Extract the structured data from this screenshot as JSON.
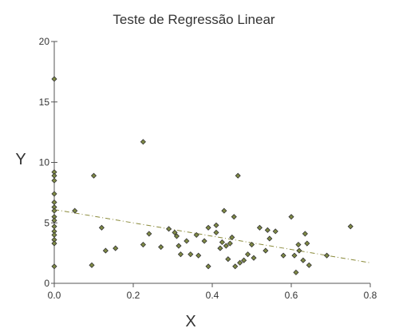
{
  "chart_data": {
    "type": "scatter",
    "title": "Teste de Regressão Linear",
    "xlabel": "X",
    "ylabel": "Y",
    "xlim": [
      0,
      0.8
    ],
    "ylim": [
      0,
      20
    ],
    "xticks": [
      0,
      0.2,
      0.4,
      0.6,
      0.8
    ],
    "yticks": [
      0,
      5,
      10,
      15,
      20
    ],
    "xtick_labels": [
      "0.0",
      "0.2",
      "0.4",
      "0.6",
      "0.8"
    ],
    "ytick_labels": [
      "0",
      "5",
      "10",
      "15",
      "20"
    ],
    "grid": false,
    "legend": "none",
    "colors": {
      "marker_fill": "#7f8a45",
      "marker_stroke": "#333333",
      "trend": "#8a8a3a"
    },
    "series": [
      {
        "points": [
          {
            "x": 0.0,
            "y": 16.9
          },
          {
            "x": 0.0,
            "y": 9.2
          },
          {
            "x": 0.0,
            "y": 8.9
          },
          {
            "x": 0.0,
            "y": 8.5
          },
          {
            "x": 0.0,
            "y": 7.4
          },
          {
            "x": 0.0,
            "y": 6.7
          },
          {
            "x": 0.0,
            "y": 6.3
          },
          {
            "x": 0.0,
            "y": 6.0
          },
          {
            "x": 0.0,
            "y": 5.5
          },
          {
            "x": 0.0,
            "y": 5.2
          },
          {
            "x": 0.0,
            "y": 4.7
          },
          {
            "x": 0.0,
            "y": 4.3
          },
          {
            "x": 0.0,
            "y": 4.0
          },
          {
            "x": 0.0,
            "y": 3.6
          },
          {
            "x": 0.0,
            "y": 3.3
          },
          {
            "x": 0.0,
            "y": 1.4
          },
          {
            "x": 0.052,
            "y": 6.0
          },
          {
            "x": 0.095,
            "y": 1.5
          },
          {
            "x": 0.1,
            "y": 8.9
          },
          {
            "x": 0.12,
            "y": 4.6
          },
          {
            "x": 0.13,
            "y": 2.7
          },
          {
            "x": 0.155,
            "y": 2.9
          },
          {
            "x": 0.225,
            "y": 11.7
          },
          {
            "x": 0.225,
            "y": 3.2
          },
          {
            "x": 0.24,
            "y": 4.1
          },
          {
            "x": 0.27,
            "y": 3.0
          },
          {
            "x": 0.29,
            "y": 4.5
          },
          {
            "x": 0.305,
            "y": 4.2
          },
          {
            "x": 0.31,
            "y": 3.9
          },
          {
            "x": 0.315,
            "y": 3.1
          },
          {
            "x": 0.32,
            "y": 2.4
          },
          {
            "x": 0.335,
            "y": 3.5
          },
          {
            "x": 0.345,
            "y": 2.4
          },
          {
            "x": 0.36,
            "y": 4.0
          },
          {
            "x": 0.365,
            "y": 2.3
          },
          {
            "x": 0.38,
            "y": 3.5
          },
          {
            "x": 0.39,
            "y": 1.4
          },
          {
            "x": 0.39,
            "y": 4.6
          },
          {
            "x": 0.41,
            "y": 4.8
          },
          {
            "x": 0.41,
            "y": 4.2
          },
          {
            "x": 0.42,
            "y": 2.9
          },
          {
            "x": 0.425,
            "y": 3.4
          },
          {
            "x": 0.43,
            "y": 6.0
          },
          {
            "x": 0.435,
            "y": 3.1
          },
          {
            "x": 0.44,
            "y": 2.0
          },
          {
            "x": 0.445,
            "y": 3.3
          },
          {
            "x": 0.45,
            "y": 3.8
          },
          {
            "x": 0.455,
            "y": 5.5
          },
          {
            "x": 0.458,
            "y": 1.4
          },
          {
            "x": 0.465,
            "y": 8.9
          },
          {
            "x": 0.47,
            "y": 1.7
          },
          {
            "x": 0.48,
            "y": 1.9
          },
          {
            "x": 0.49,
            "y": 2.4
          },
          {
            "x": 0.5,
            "y": 3.2
          },
          {
            "x": 0.505,
            "y": 2.1
          },
          {
            "x": 0.52,
            "y": 4.6
          },
          {
            "x": 0.535,
            "y": 2.7
          },
          {
            "x": 0.54,
            "y": 4.4
          },
          {
            "x": 0.545,
            "y": 3.7
          },
          {
            "x": 0.56,
            "y": 4.3
          },
          {
            "x": 0.58,
            "y": 2.3
          },
          {
            "x": 0.6,
            "y": 5.5
          },
          {
            "x": 0.608,
            "y": 2.3
          },
          {
            "x": 0.612,
            "y": 0.9
          },
          {
            "x": 0.618,
            "y": 3.2
          },
          {
            "x": 0.62,
            "y": 2.7
          },
          {
            "x": 0.63,
            "y": 1.9
          },
          {
            "x": 0.635,
            "y": 4.1
          },
          {
            "x": 0.64,
            "y": 3.3
          },
          {
            "x": 0.645,
            "y": 1.5
          },
          {
            "x": 0.69,
            "y": 2.3
          },
          {
            "x": 0.75,
            "y": 4.7
          }
        ]
      }
    ],
    "trendline": {
      "style": "dash-dot",
      "x": [
        0,
        0.8
      ],
      "y": [
        6.1,
        1.7
      ]
    }
  }
}
